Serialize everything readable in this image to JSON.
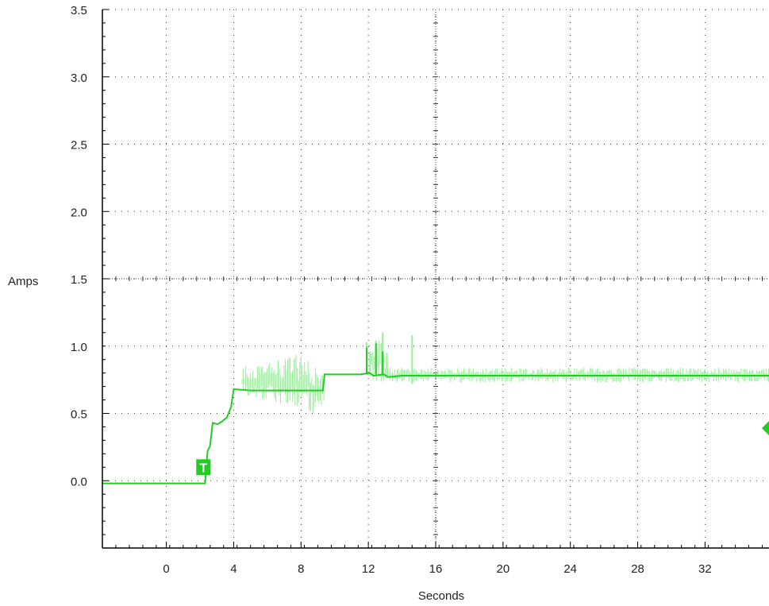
{
  "chart_data": {
    "type": "line",
    "xlabel": "Seconds",
    "ylabel": "Amps",
    "xlim": [
      -3.8,
      35.8
    ],
    "ylim": [
      -0.5,
      3.5
    ],
    "x_ticks": [
      0,
      4,
      8,
      12,
      16,
      20,
      24,
      28,
      32
    ],
    "y_ticks": [
      0.0,
      0.5,
      1.0,
      1.5,
      2.0,
      2.5,
      3.0,
      3.5
    ],
    "x_tick_labels": [
      "0",
      "4",
      "8",
      "12",
      "16",
      "20",
      "24",
      "28",
      "32"
    ],
    "y_tick_labels": [
      "0.0",
      "0.5",
      "1.0",
      "1.5",
      "2.0",
      "2.5",
      "3.0",
      "3.5"
    ],
    "grid": true,
    "grid_style": "dotted",
    "background": "#ffffff",
    "series": [
      {
        "color": "#22cc22",
        "x": [
          -3.8,
          2.3,
          2.45,
          2.6,
          2.75,
          3.05,
          3.3,
          3.6,
          3.85,
          4.0,
          5.0,
          9.3,
          9.4,
          11.5,
          12.1,
          12.3,
          12.9,
          13.2,
          14,
          16,
          20,
          24,
          28,
          32,
          35.8
        ],
        "y": [
          -0.02,
          -0.02,
          0.22,
          0.26,
          0.43,
          0.42,
          0.44,
          0.47,
          0.55,
          0.68,
          0.67,
          0.67,
          0.79,
          0.79,
          0.8,
          0.78,
          0.79,
          0.77,
          0.78,
          0.78,
          0.78,
          0.78,
          0.78,
          0.78,
          0.78
        ]
      }
    ],
    "noise_band_color": "#99ee99",
    "noise_band": [
      {
        "x": [
          4.5,
          5.5
        ],
        "y": [
          0.62,
          0.85
        ]
      },
      {
        "x": [
          5.5,
          6.5
        ],
        "y": [
          0.6,
          0.9
        ]
      },
      {
        "x": [
          6.5,
          7.5
        ],
        "y": [
          0.55,
          0.92
        ]
      },
      {
        "x": [
          7.5,
          8.5
        ],
        "y": [
          0.5,
          0.94
        ]
      },
      {
        "x": [
          8.5,
          9.0
        ],
        "y": [
          0.5,
          0.85
        ]
      },
      {
        "x": [
          9.0,
          9.4
        ],
        "y": [
          0.55,
          0.8
        ]
      },
      {
        "x": [
          12.2,
          13.0
        ],
        "y": [
          0.72,
          1.08
        ]
      },
      {
        "x": [
          13.0,
          35.8
        ],
        "y": [
          0.73,
          0.84
        ]
      }
    ],
    "spikes": [
      {
        "x": 11.9,
        "y": [
          0.79,
          1.03
        ]
      },
      {
        "x": 12.1,
        "y": [
          0.78,
          0.96
        ]
      },
      {
        "x": 12.45,
        "y": [
          0.8,
          1.04
        ]
      },
      {
        "x": 12.85,
        "y": [
          0.77,
          1.1
        ]
      },
      {
        "x": 13.1,
        "y": [
          0.76,
          0.95
        ]
      },
      {
        "x": 14.6,
        "y": [
          0.72,
          1.08
        ]
      }
    ],
    "trigger_marker": {
      "label": "T",
      "x": 2.2,
      "y": 0.1
    },
    "level_marker": {
      "y": 0.39,
      "side": "right"
    }
  }
}
